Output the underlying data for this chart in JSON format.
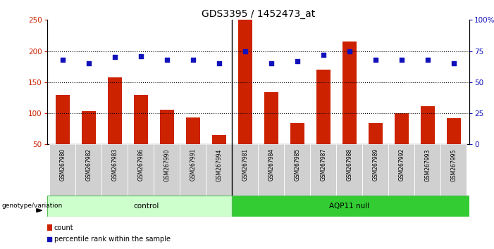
{
  "title": "GDS3395 / 1452473_at",
  "samples": [
    "GSM267980",
    "GSM267982",
    "GSM267983",
    "GSM267986",
    "GSM267990",
    "GSM267991",
    "GSM267994",
    "GSM267981",
    "GSM267984",
    "GSM267985",
    "GSM267987",
    "GSM267988",
    "GSM267989",
    "GSM267992",
    "GSM267993",
    "GSM267995"
  ],
  "counts": [
    130,
    104,
    158,
    130,
    106,
    93,
    65,
    250,
    134,
    84,
    170,
    215,
    84,
    100,
    111,
    92
  ],
  "percentile_ranks": [
    68,
    65,
    70,
    71,
    68,
    68,
    65,
    75,
    65,
    67,
    72,
    75,
    68,
    68,
    68,
    65
  ],
  "group_control_count": 7,
  "group_aqp11_count": 9,
  "group_labels": [
    "control",
    "AQP11 null"
  ],
  "bar_color": "#cc2200",
  "dot_color": "#1111bb",
  "left_ylim": [
    50,
    250
  ],
  "left_yticks": [
    50,
    100,
    150,
    200,
    250
  ],
  "right_ylim": [
    0,
    100
  ],
  "right_yticks": [
    0,
    25,
    50,
    75,
    100
  ],
  "right_yticklabels": [
    "0",
    "25",
    "50",
    "75",
    "100%"
  ],
  "control_bg": "#ccffcc",
  "aqp11_bg": "#33cc33",
  "legend_count_label": "count",
  "legend_pct_label": "percentile rank within the sample"
}
